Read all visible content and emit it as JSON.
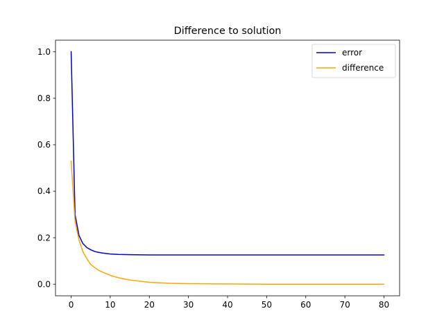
{
  "chart_data": {
    "type": "line",
    "title": "Difference to solution",
    "xlabel": "",
    "ylabel": "",
    "xlim": [
      -4,
      84
    ],
    "ylim": [
      -0.05,
      1.05
    ],
    "xticks": [
      0,
      10,
      20,
      30,
      40,
      50,
      60,
      70,
      80
    ],
    "yticks": [
      0.0,
      0.2,
      0.4,
      0.6,
      0.8,
      1.0
    ],
    "xtick_labels": [
      "0",
      "10",
      "20",
      "30",
      "40",
      "50",
      "60",
      "70",
      "80"
    ],
    "ytick_labels": [
      "0.0",
      "0.2",
      "0.4",
      "0.6",
      "0.8",
      "1.0"
    ],
    "grid": false,
    "legend": {
      "position": "upper right"
    },
    "series": [
      {
        "name": "error",
        "color": "#0000cd",
        "x": [
          0,
          1,
          2,
          3,
          4,
          5,
          6,
          7,
          8,
          10,
          12,
          15,
          20,
          30,
          40,
          50,
          60,
          70,
          80
        ],
        "y": [
          1.0,
          0.3,
          0.21,
          0.175,
          0.158,
          0.148,
          0.141,
          0.137,
          0.134,
          0.13,
          0.128,
          0.127,
          0.126,
          0.126,
          0.126,
          0.126,
          0.126,
          0.126,
          0.126
        ]
      },
      {
        "name": "difference",
        "color": "#ffa500",
        "x": [
          0,
          1,
          2,
          3,
          4,
          5,
          6,
          7,
          8,
          10,
          12,
          15,
          20,
          25,
          30,
          40,
          50,
          60,
          70,
          80
        ],
        "y": [
          0.53,
          0.27,
          0.19,
          0.14,
          0.11,
          0.085,
          0.072,
          0.06,
          0.052,
          0.038,
          0.028,
          0.018,
          0.008,
          0.004,
          0.002,
          0.001,
          0.0,
          0.0,
          0.0,
          0.0
        ]
      }
    ]
  }
}
